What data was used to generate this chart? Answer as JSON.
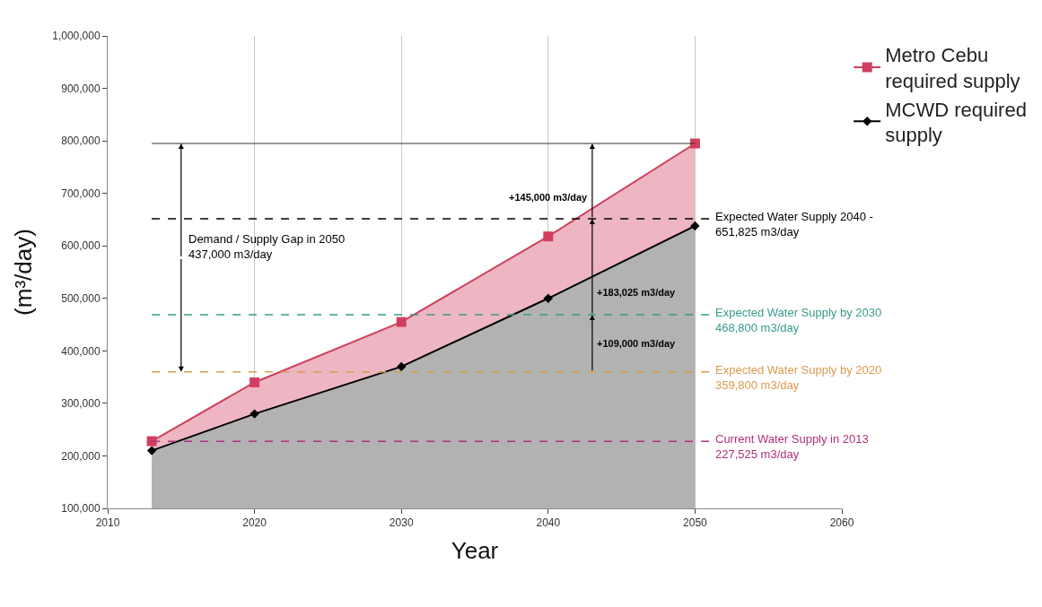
{
  "chart_data": {
    "type": "area",
    "xlabel": "Year",
    "ylabel": "(m³/day)",
    "x": [
      2013,
      2020,
      2030,
      2040,
      2050
    ],
    "series": [
      {
        "name": "Metro Cebu required supply",
        "color": "#d0405e",
        "marker": "square",
        "values": [
          228000,
          340000,
          455000,
          618000,
          795000
        ]
      },
      {
        "name": "MCWD required supply",
        "color": "#000000",
        "marker": "diamond",
        "values": [
          210000,
          280000,
          370000,
          500000,
          638000
        ]
      }
    ],
    "xlim": [
      2010,
      2060
    ],
    "xticks": [
      2010,
      2020,
      2030,
      2040,
      2050,
      2060
    ],
    "ylim": [
      100000,
      1000000
    ],
    "yticks": [
      {
        "value": 100000,
        "label": "100,000"
      },
      {
        "value": 200000,
        "label": "200,000"
      },
      {
        "value": 300000,
        "label": "300,000"
      },
      {
        "value": 400000,
        "label": "400,000"
      },
      {
        "value": 500000,
        "label": "500,000"
      },
      {
        "value": 600000,
        "label": "600,000"
      },
      {
        "value": 700000,
        "label": "700,000"
      },
      {
        "value": 800000,
        "label": "800,000"
      },
      {
        "value": 900000,
        "label": "900,000"
      },
      {
        "value": 1000000,
        "label": "1,000,000"
      }
    ],
    "grid": "x",
    "legend": "top right",
    "line_style": "solid",
    "ref_lines": [
      {
        "axis": "y",
        "value": 227525,
        "label": "Current Water Supply in 2013\n227,525 m3/day",
        "color": "#b0307a",
        "line_style": "dashed"
      },
      {
        "axis": "y",
        "value": 359800,
        "label": "Expected Water Supply by 2020\n359,800 m3/day",
        "color": "#d99a50",
        "line_style": "dashed"
      },
      {
        "axis": "y",
        "value": 468800,
        "label": "Expected Water Supply by 2030\n468,800 m3/day",
        "color": "#3a9a8a",
        "line_style": "dashed"
      },
      {
        "axis": "y",
        "value": 651825,
        "label": "Expected Water Supply 2040 -\n651,825 m3/day",
        "color": "#000000",
        "line_style": "dashed"
      },
      {
        "axis": "y",
        "value": 795000,
        "color": "#333333",
        "line_style": "solid"
      }
    ],
    "annotations": [
      {
        "text": "Demand / Supply Gap in 2050\n437,000 m3/day",
        "x": 2015,
        "y": 359800
      },
      "+109,000 m3/day",
      "+183,025 m3/day",
      "+145,000 m3/day"
    ]
  }
}
